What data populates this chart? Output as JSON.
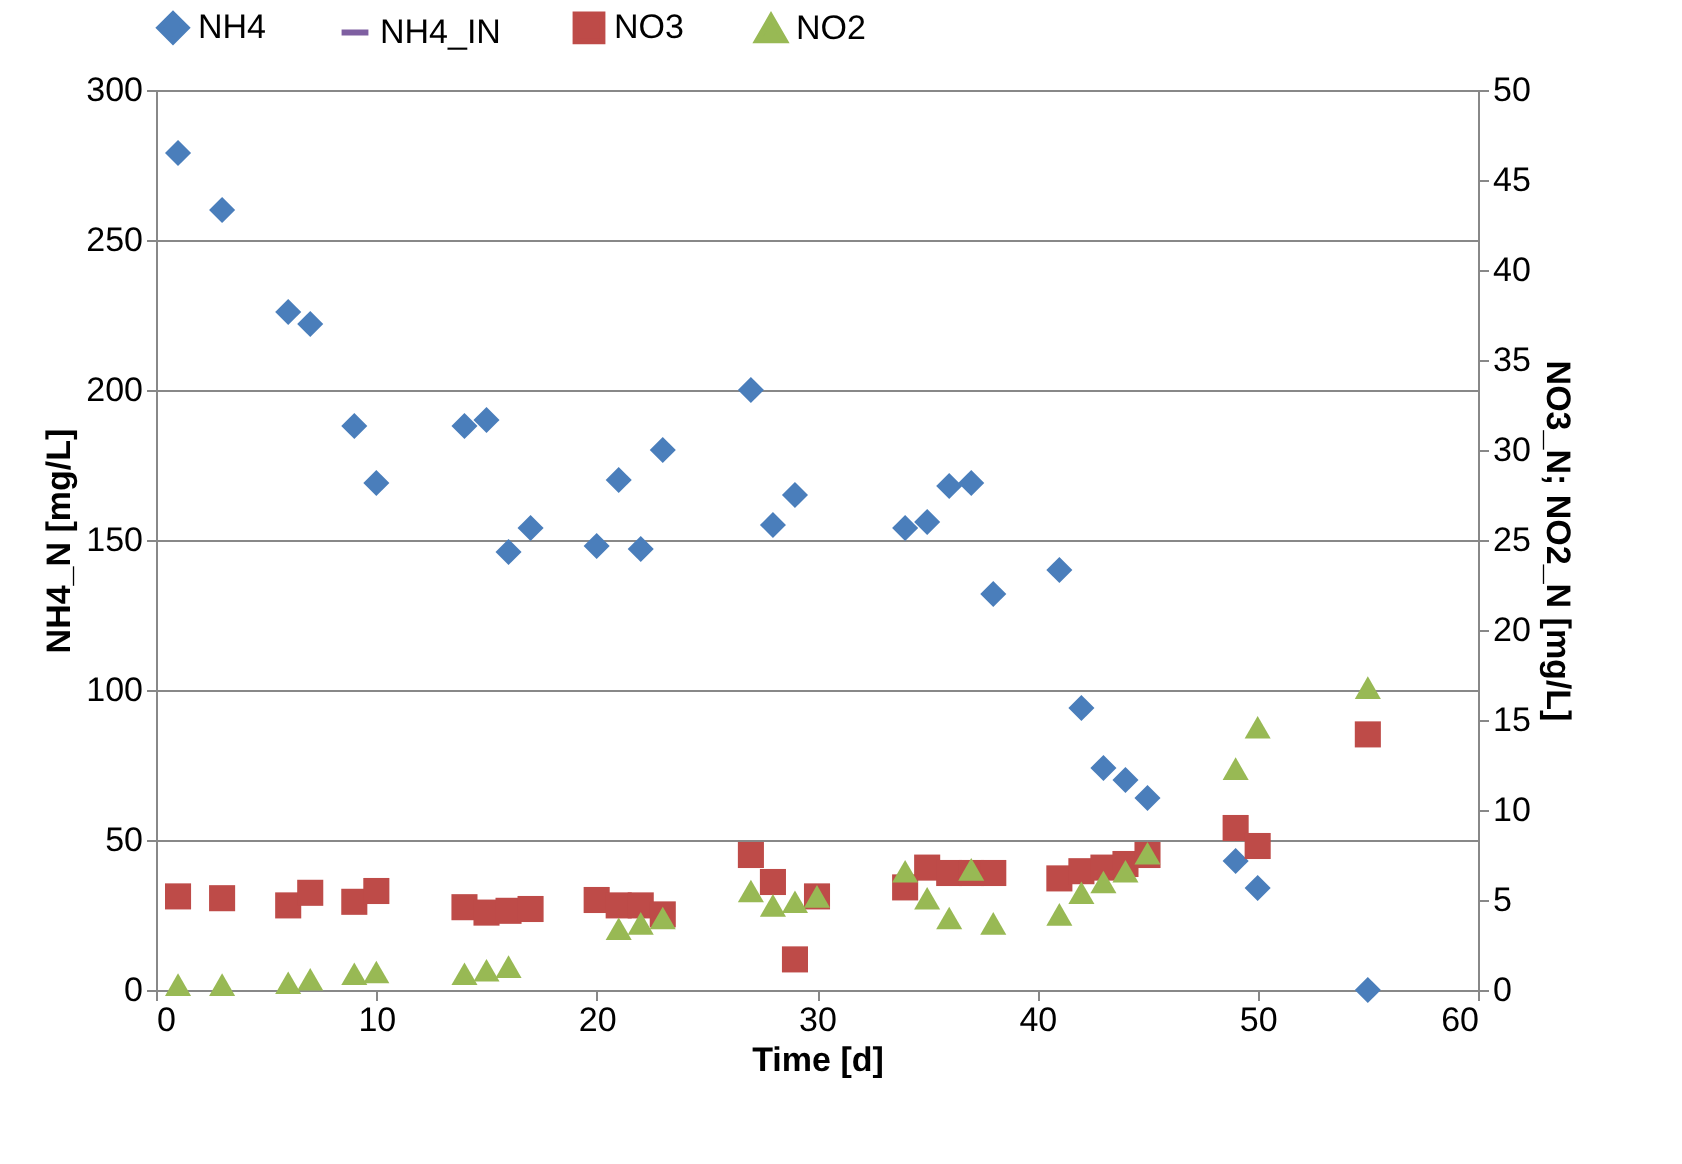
{
  "chart_data": {
    "type": "scatter",
    "xlabel": "Time [d]",
    "ylabel": "NH4_N [mg/L]",
    "y2label": "NO3_N; NO2_N [mg/L]",
    "xlim": [
      0,
      60
    ],
    "xticks": [
      0,
      10,
      20,
      30,
      40,
      50,
      60
    ],
    "ylim": [
      0,
      300
    ],
    "yticks": [
      0,
      50,
      100,
      150,
      200,
      250,
      300
    ],
    "y2lim": [
      0,
      50
    ],
    "y2ticks": [
      0,
      5,
      10,
      15,
      20,
      25,
      30,
      35,
      40,
      45,
      50
    ],
    "grid": "y",
    "legend": "top",
    "series": [
      {
        "name": "NH4",
        "color": "#4a7ebb",
        "marker": "diamond",
        "x": [
          1,
          3,
          6,
          7,
          9,
          10,
          14,
          15,
          16,
          17,
          20,
          21,
          22,
          23,
          27,
          28,
          29,
          34,
          35,
          36,
          37,
          38,
          41,
          42,
          43,
          44,
          45,
          49,
          50,
          55
        ],
        "values": [
          279,
          260,
          226,
          222,
          188,
          169,
          188,
          190,
          146,
          154,
          148,
          170,
          147,
          180,
          200,
          155,
          165,
          154,
          156,
          168,
          169,
          132,
          140,
          94,
          74,
          70,
          64,
          43,
          34,
          0
        ]
      },
      {
        "name": "NH4_IN",
        "type": "line",
        "color": "#7e5fa1",
        "marker": "none"
      },
      {
        "name": "NO3",
        "color": "#be4b48",
        "marker": "square",
        "axis": "y2",
        "x": [
          1,
          3,
          6,
          7,
          9,
          10,
          14,
          15,
          16,
          17,
          20,
          21,
          22,
          23,
          27,
          28,
          29,
          30,
          34,
          35,
          36,
          37,
          38,
          41,
          42,
          43,
          44,
          45,
          49,
          50,
          55
        ],
        "values": [
          5.2,
          5.1,
          4.7,
          5.4,
          4.9,
          5.5,
          4.6,
          4.3,
          4.4,
          4.5,
          5.0,
          4.7,
          4.7,
          4.2,
          7.5,
          6.0,
          1.7,
          5.2,
          5.7,
          6.8,
          6.5,
          6.5,
          6.5,
          6.2,
          6.6,
          6.8,
          7.0,
          7.5,
          9.0,
          8.0,
          14.2
        ]
      },
      {
        "name": "NO2",
        "color": "#98b954",
        "marker": "triangle",
        "axis": "y2",
        "x": [
          1,
          3,
          6,
          7,
          9,
          10,
          14,
          15,
          16,
          21,
          22,
          23,
          27,
          28,
          29,
          30,
          34,
          35,
          36,
          37,
          38,
          41,
          42,
          43,
          44,
          45,
          49,
          50,
          55
        ],
        "values": [
          0.3,
          0.3,
          0.4,
          0.6,
          0.9,
          1.0,
          0.9,
          1.1,
          1.3,
          3.4,
          3.7,
          4.0,
          5.5,
          4.7,
          4.9,
          5.2,
          6.6,
          5.1,
          4.0,
          6.7,
          3.7,
          4.2,
          5.4,
          6.0,
          6.6,
          7.6,
          12.3,
          14.6,
          16.8
        ]
      }
    ]
  }
}
